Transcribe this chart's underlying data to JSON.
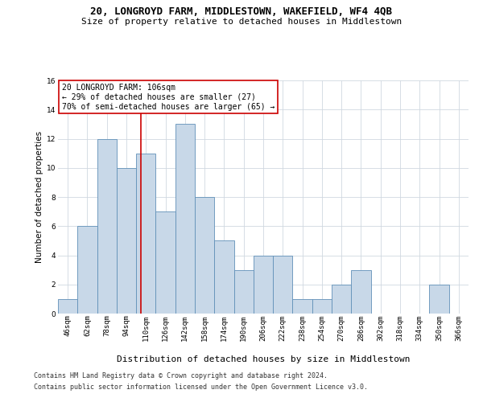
{
  "title": "20, LONGROYD FARM, MIDDLESTOWN, WAKEFIELD, WF4 4QB",
  "subtitle": "Size of property relative to detached houses in Middlestown",
  "xlabel": "Distribution of detached houses by size in Middlestown",
  "ylabel": "Number of detached properties",
  "categories": [
    "46sqm",
    "62sqm",
    "78sqm",
    "94sqm",
    "110sqm",
    "126sqm",
    "142sqm",
    "158sqm",
    "174sqm",
    "190sqm",
    "206sqm",
    "222sqm",
    "238sqm",
    "254sqm",
    "270sqm",
    "286sqm",
    "302sqm",
    "318sqm",
    "334sqm",
    "350sqm",
    "366sqm"
  ],
  "values": [
    1,
    6,
    12,
    10,
    11,
    7,
    13,
    8,
    5,
    3,
    4,
    4,
    1,
    1,
    2,
    3,
    0,
    0,
    0,
    2,
    0
  ],
  "bar_color": "#c8d8e8",
  "bar_edge_color": "#6090b8",
  "annotation_line1": "20 LONGROYD FARM: 106sqm",
  "annotation_line2": "← 29% of detached houses are smaller (27)",
  "annotation_line3": "70% of semi-detached houses are larger (65) →",
  "annotation_box_edge": "#cc0000",
  "vline_color": "#cc0000",
  "vline_bin": 3.75,
  "ylim": [
    0,
    16
  ],
  "yticks": [
    0,
    2,
    4,
    6,
    8,
    10,
    12,
    14,
    16
  ],
  "footer1": "Contains HM Land Registry data © Crown copyright and database right 2024.",
  "footer2": "Contains public sector information licensed under the Open Government Licence v3.0.",
  "background_color": "#ffffff",
  "grid_color": "#d0d8e0",
  "title_fontsize": 9,
  "subtitle_fontsize": 8,
  "ylabel_fontsize": 7.5,
  "xlabel_fontsize": 8,
  "tick_fontsize": 6.5,
  "annotation_fontsize": 7,
  "footer_fontsize": 6
}
